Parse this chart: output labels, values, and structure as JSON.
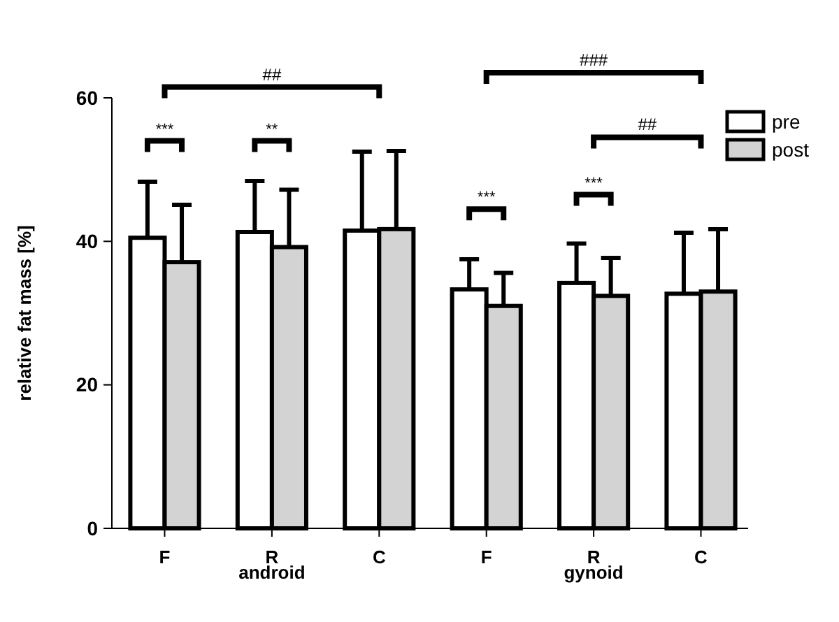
{
  "chart_data": {
    "type": "bar",
    "ylabel": "relative fat mass [%]",
    "categories": [
      "F",
      "R",
      "C",
      "F",
      "R",
      "C"
    ],
    "series": [
      {
        "name": "pre",
        "color": "#ffffff",
        "values": [
          40.5,
          41.3,
          41.5,
          33.3,
          34.2,
          32.7
        ],
        "errors": [
          [
            40.5,
            48.3
          ],
          [
            41.3,
            48.4
          ],
          [
            41.5,
            52.5
          ],
          [
            33.3,
            37.5
          ],
          [
            34.2,
            39.7
          ],
          [
            32.7,
            41.2
          ]
        ]
      },
      {
        "name": "post",
        "color": "#d3d3d3",
        "values": [
          37.1,
          39.2,
          41.7,
          31.0,
          32.4,
          33.0
        ],
        "errors": [
          [
            37.1,
            45.1
          ],
          [
            39.2,
            47.2
          ],
          [
            41.7,
            52.6
          ],
          [
            31.0,
            35.6
          ],
          [
            32.4,
            37.7
          ],
          [
            33.0,
            41.7
          ]
        ]
      }
    ],
    "ylim": [
      0,
      60
    ],
    "yticks": [
      0,
      20,
      40,
      60
    ],
    "grid": false,
    "legend": "top right",
    "annotations": [
      "android",
      "gynoid",
      "##",
      "###",
      "##",
      "***",
      "**",
      "***",
      "***"
    ]
  }
}
